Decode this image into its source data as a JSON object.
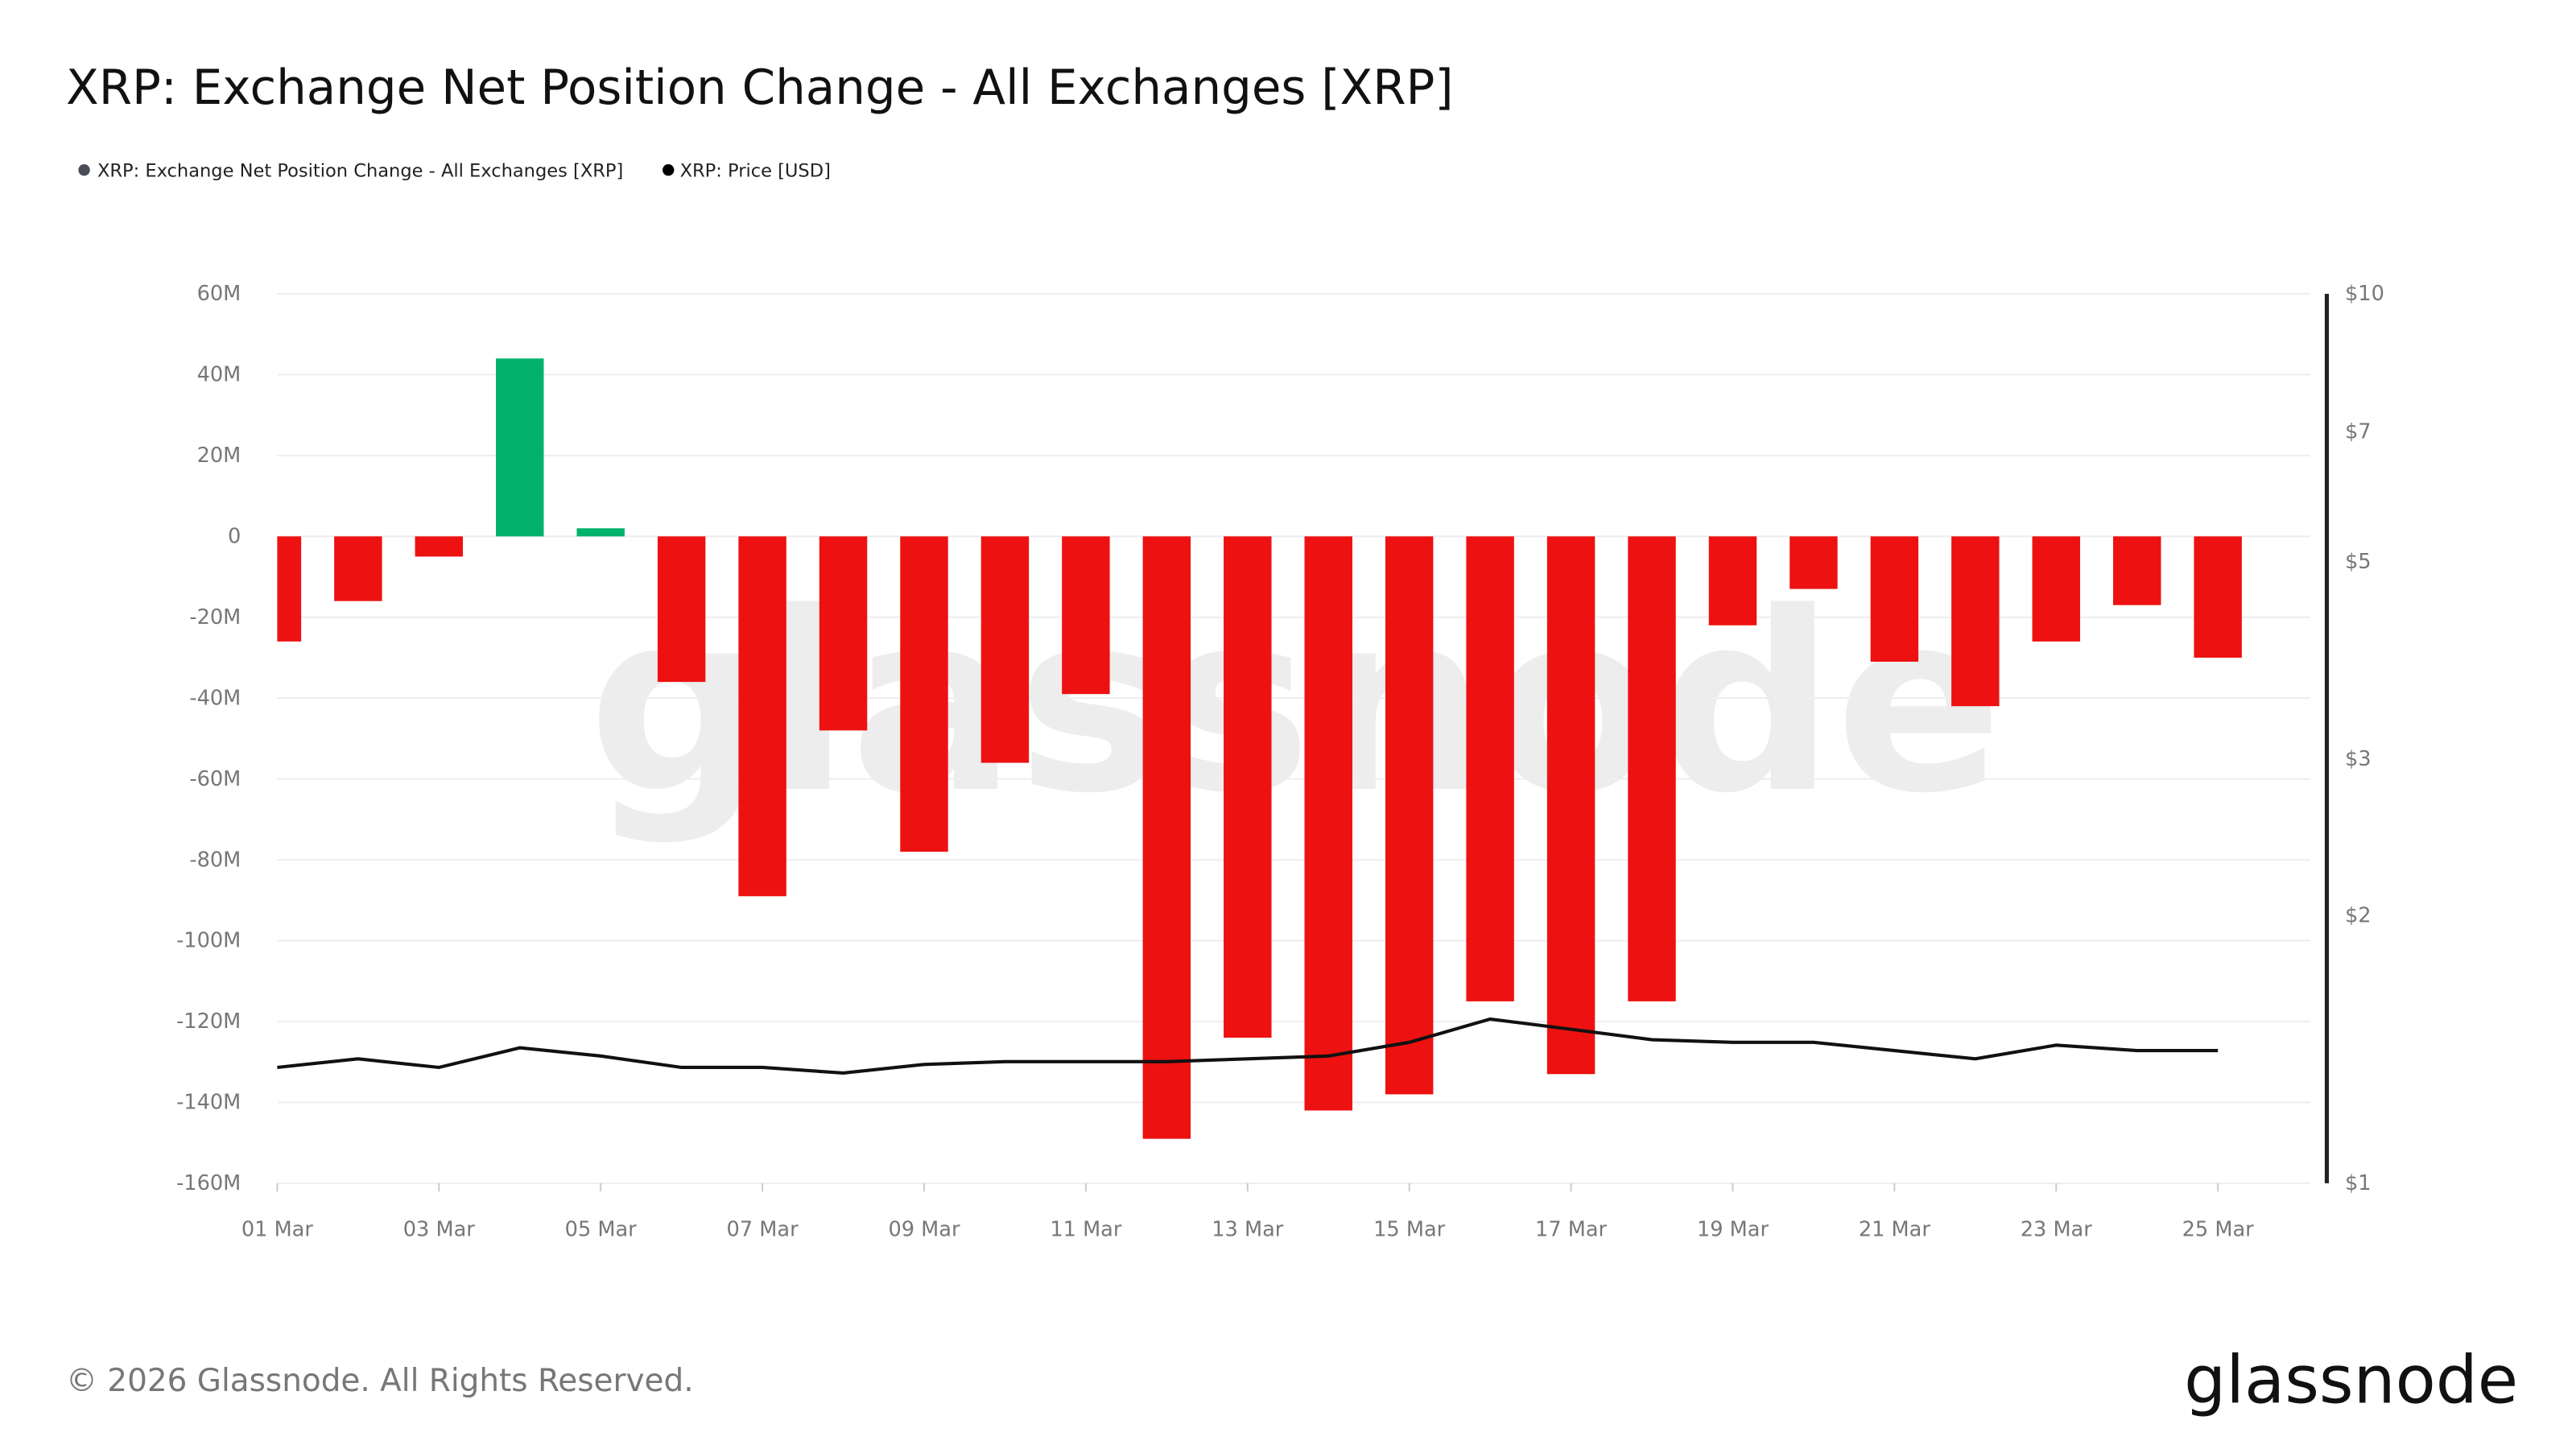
{
  "chart_data": {
    "type": "bar",
    "title": "XRP: Exchange Net Position Change - All Exchanges [XRP]",
    "legend": {
      "placement": "top-left",
      "items": [
        {
          "label": "XRP: Exchange Net Position Change - All Exchanges [XRP]",
          "color": "#4a4d57"
        },
        {
          "label": "XRP: Price [USD]",
          "color": "#000000"
        }
      ]
    },
    "categories": [
      "01 Mar",
      "02 Mar",
      "03 Mar",
      "04 Mar",
      "05 Mar",
      "06 Mar",
      "07 Mar",
      "08 Mar",
      "09 Mar",
      "10 Mar",
      "11 Mar",
      "12 Mar",
      "13 Mar",
      "14 Mar",
      "15 Mar",
      "16 Mar",
      "17 Mar",
      "18 Mar",
      "19 Mar",
      "20 Mar",
      "21 Mar",
      "22 Mar",
      "23 Mar",
      "24 Mar",
      "25 Mar"
    ],
    "x_tick_labels": [
      "01 Mar",
      "03 Mar",
      "05 Mar",
      "07 Mar",
      "09 Mar",
      "11 Mar",
      "13 Mar",
      "15 Mar",
      "17 Mar",
      "19 Mar",
      "21 Mar",
      "23 Mar",
      "25 Mar"
    ],
    "series": [
      {
        "name": "XRP: Exchange Net Position Change - All Exchanges [XRP]",
        "type": "bar",
        "axis": "left",
        "unit": "M XRP",
        "values": [
          -26,
          -16,
          -5,
          44,
          2,
          -36,
          -89,
          -48,
          -78,
          -56,
          -39,
          -149,
          -124,
          -142,
          -138,
          -115,
          -133,
          -115,
          -22,
          -13,
          -31,
          -42,
          -26,
          -17,
          -30
        ]
      },
      {
        "name": "XRP: Price [USD]",
        "type": "line",
        "axis": "right",
        "values": [
          1.35,
          1.38,
          1.35,
          1.42,
          1.39,
          1.35,
          1.35,
          1.33,
          1.36,
          1.37,
          1.37,
          1.37,
          1.38,
          1.39,
          1.44,
          1.53,
          1.49,
          1.45,
          1.44,
          1.44,
          1.41,
          1.38,
          1.43,
          1.41,
          1.41
        ]
      }
    ],
    "left_axis": {
      "range": [
        -160,
        60
      ],
      "ticks": [
        60,
        40,
        20,
        0,
        -20,
        -40,
        -60,
        -80,
        -100,
        -120,
        -140,
        -160
      ],
      "tick_labels": [
        "60M",
        "40M",
        "20M",
        "0",
        "-20M",
        "-40M",
        "-60M",
        "-80M",
        "-100M",
        "-120M",
        "-140M",
        "-160M"
      ]
    },
    "right_axis": {
      "scale": "log",
      "range": [
        1,
        10
      ],
      "ticks": [
        10,
        7,
        5,
        3,
        2,
        1
      ],
      "tick_labels": [
        "$10",
        "$7",
        "$5",
        "$3",
        "$2",
        "$1"
      ]
    },
    "grid": true,
    "colors": {
      "positive": "#00b26b",
      "negative": "#ee1111",
      "price_line": "#111111"
    }
  },
  "watermark": "glassnode",
  "footer": {
    "copyright": "© 2026 Glassnode. All Rights Reserved.",
    "logo": "glassnode"
  }
}
